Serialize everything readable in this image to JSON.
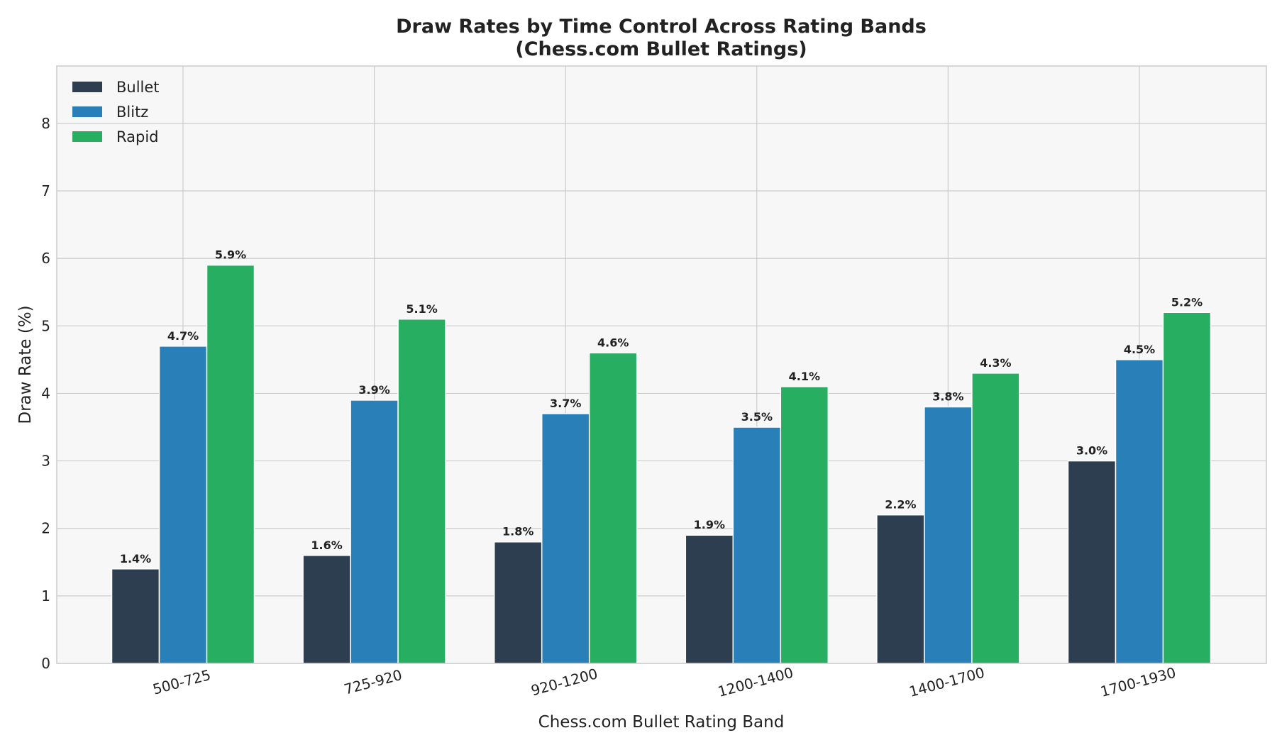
{
  "chart_data": {
    "type": "bar",
    "title": "Draw Rates by Time Control Across Rating Bands",
    "subtitle": "(Chess.com Bullet Ratings)",
    "xlabel": "Chess.com Bullet Rating Band",
    "ylabel": "Draw Rate (%)",
    "categories": [
      "500-725",
      "725-920",
      "920-1200",
      "1200-1400",
      "1400-1700",
      "1700-1930"
    ],
    "series": [
      {
        "name": "Bullet",
        "color": "#2c3e50",
        "values": [
          1.4,
          1.6,
          1.8,
          1.9,
          2.2,
          3.0
        ],
        "labels": [
          "1.4%",
          "1.6%",
          "1.8%",
          "1.9%",
          "2.2%",
          "3.0%"
        ]
      },
      {
        "name": "Blitz",
        "color": "#2980b9",
        "values": [
          4.7,
          3.9,
          3.7,
          3.5,
          3.8,
          4.5
        ],
        "labels": [
          "4.7%",
          "3.9%",
          "3.7%",
          "3.5%",
          "3.8%",
          "4.5%"
        ]
      },
      {
        "name": "Rapid",
        "color": "#27ae60",
        "values": [
          5.9,
          5.1,
          4.6,
          4.1,
          4.3,
          5.2
        ],
        "labels": [
          "5.9%",
          "5.1%",
          "4.6%",
          "4.1%",
          "4.3%",
          "5.2%"
        ]
      }
    ],
    "ylim": [
      0,
      8.85
    ],
    "yticks": [
      "0",
      "1",
      "2",
      "3",
      "4",
      "5",
      "6",
      "7",
      "8"
    ],
    "grid": true,
    "legend_position": "top-left",
    "plot_background": "#f7f7f7"
  }
}
